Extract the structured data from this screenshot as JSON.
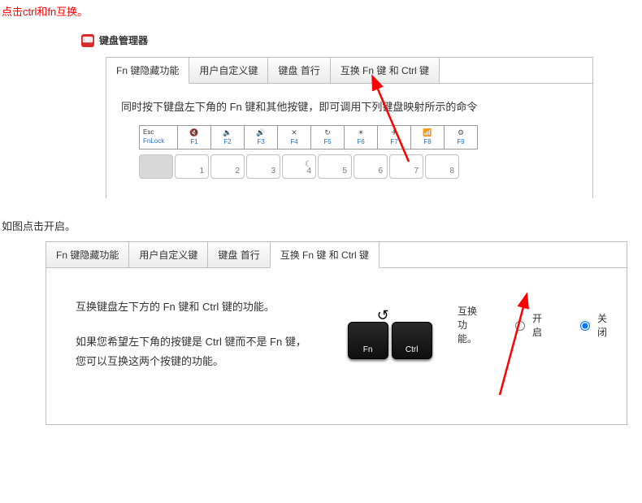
{
  "annotation": {
    "top_text": "点击ctrl和fn互换。",
    "mid_text": "如图点击开启。",
    "text_color": "#ff0000",
    "arrow_color": "#ff0000"
  },
  "app": {
    "icon_bg": "#d82a2a",
    "icon_glyph": "⌨",
    "title": "键盘管理器"
  },
  "panel1": {
    "tabs": [
      {
        "label": "Fn 键隐藏功能",
        "active": true
      },
      {
        "label": "用户自定义键",
        "active": false
      },
      {
        "label": "键盘 首行",
        "active": false
      },
      {
        "label": "互换 Fn 键 和 Ctrl 键",
        "active": false
      }
    ],
    "description": "同时按下键盘左下角的 Fn 键和其他按键，即可调用下列键盘映射所示的命令",
    "fnrow": [
      {
        "top": "Esc",
        "bottom": "FnLock",
        "esc": true
      },
      {
        "icon": "🔇",
        "bottom": "F1"
      },
      {
        "icon": "🔉",
        "bottom": "F2"
      },
      {
        "icon": "🔊",
        "bottom": "F3"
      },
      {
        "icon": "✕",
        "bottom": "F4"
      },
      {
        "icon": "↻",
        "bottom": "F5"
      },
      {
        "icon": "☀",
        "bottom": "F6"
      },
      {
        "icon": "✈",
        "bottom": "F7"
      },
      {
        "icon": "📶",
        "bottom": "F8"
      },
      {
        "icon": "⚙",
        "bottom": "F9"
      }
    ],
    "numrow": [
      {
        "label": "",
        "blank": true
      },
      {
        "label": "1"
      },
      {
        "label": "2"
      },
      {
        "label": "3"
      },
      {
        "label": "4",
        "moon": true
      },
      {
        "label": "5"
      },
      {
        "label": "6"
      },
      {
        "label": "7"
      },
      {
        "label": "8"
      }
    ]
  },
  "panel2": {
    "tabs": [
      {
        "label": "Fn 键隐藏功能",
        "active": false
      },
      {
        "label": "用户自定义键",
        "active": false
      },
      {
        "label": "键盘 首行",
        "active": false
      },
      {
        "label": "互换 Fn 键 和 Ctrl 键",
        "active": true
      }
    ],
    "desc1": "互换键盘左下方的 Fn 键和 Ctrl 键的功能。",
    "desc2": "如果您希望左下角的按键是 Ctrl 键而不是 Fn 键，您可以互换这两个按键的功能。",
    "key_fn": "Fn",
    "key_ctrl": "Ctrl",
    "radio_title": "互换功能。",
    "radio_on": "开启",
    "radio_off": "关闭",
    "selected": "off"
  }
}
